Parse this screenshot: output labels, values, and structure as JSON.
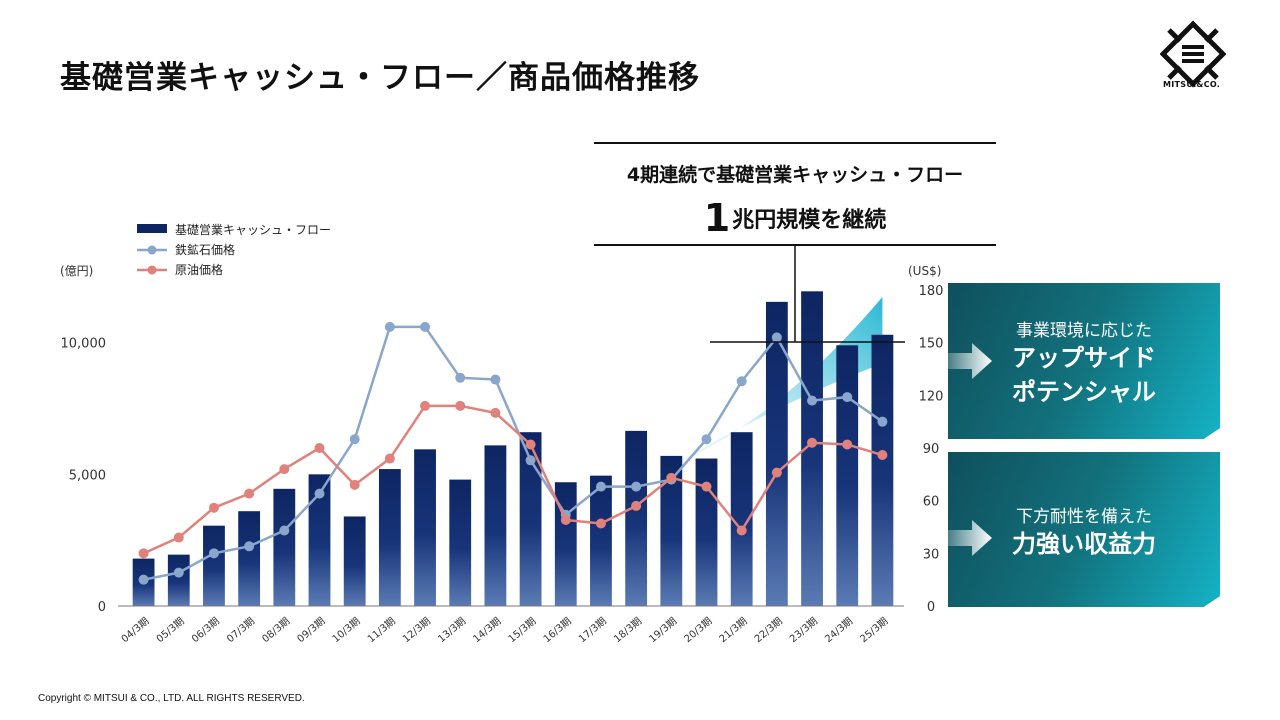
{
  "title": "基礎営業キャッシュ・フロー／商品価格推移",
  "logo_text": "MITSUI&CO.",
  "callout": {
    "line1": "4期連続で基礎営業キャッシュ・フロー",
    "line2_number": "1",
    "line2_text": "兆円規模を継続"
  },
  "panels": [
    {
      "subtitle": "事業環境に応じた",
      "lines": [
        "アップサイド",
        "ポテンシャル"
      ]
    },
    {
      "subtitle": "下方耐性を備えた",
      "lines": [
        "力強い収益力"
      ]
    }
  ],
  "copyright": "Copyright © MITSUI & CO., LTD. ALL RIGHTS RESERVED.",
  "chart_data": {
    "type": "bar",
    "left_axis_unit": "(億円)",
    "right_axis_unit": "(US$)",
    "left_ticks": [
      "0",
      "5,000",
      "10,000"
    ],
    "right_ticks": [
      "0",
      "30",
      "60",
      "90",
      "120",
      "150",
      "180"
    ],
    "ylim_left": [
      0,
      12000
    ],
    "ylim_right": [
      0,
      180
    ],
    "categories": [
      "04/3期",
      "05/3期",
      "06/3期",
      "07/3期",
      "08/3期",
      "09/3期",
      "10/3期",
      "11/3期",
      "12/3期",
      "13/3期",
      "14/3期",
      "15/3期",
      "16/3期",
      "17/3期",
      "18/3期",
      "19/3期",
      "20/3期",
      "21/3期",
      "22/3期",
      "23/3期",
      "24/3期",
      "25/3期"
    ],
    "series": [
      {
        "name": "基礎営業キャッシュ・フロー",
        "type": "bar",
        "axis": "left",
        "color": "#0d2562",
        "values": [
          1800,
          1950,
          3050,
          3600,
          4450,
          5000,
          3400,
          5200,
          5950,
          4800,
          6100,
          6600,
          4700,
          4950,
          6650,
          5700,
          5600,
          6600,
          11550,
          11950,
          9900,
          10300
        ]
      },
      {
        "name": "鉄鉱石価格",
        "type": "line",
        "axis": "right",
        "color": "#8ba6cc",
        "values": [
          15,
          19,
          30,
          34,
          43,
          64,
          95,
          159,
          159,
          130,
          129,
          83,
          52,
          68,
          68,
          72,
          95,
          128,
          153,
          117,
          119,
          105
        ]
      },
      {
        "name": "原油価格",
        "type": "line",
        "axis": "right",
        "color": "#e0817b",
        "values": [
          30,
          39,
          56,
          64,
          78,
          90,
          69,
          84,
          114,
          114,
          110,
          92,
          49,
          47,
          57,
          73,
          68,
          43,
          76,
          93,
          92,
          86
        ]
      }
    ]
  }
}
